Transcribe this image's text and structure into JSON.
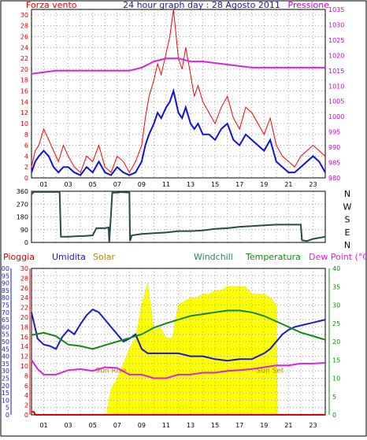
{
  "header": {
    "left": "Forza vento",
    "center": "24 hour graph day : 28 Agosto 2011",
    "right": "Pressione"
  },
  "colors": {
    "wind_axis": "#e00000",
    "pressure_axis": "#cc00cc",
    "title_blue": "#1a1aa0",
    "wind_avg": "#1010e0",
    "wind_gust": "#ff0000",
    "pressure": "#dd22dd",
    "direction": "#2a4a4a",
    "rain": "#e00000",
    "humidity": "#1a1ad0",
    "solar": "#ffff00",
    "solar_label": "#b08a00",
    "windchill": "#2e7d6e",
    "temperature": "#138a13",
    "dewpoint": "#dd22dd",
    "grid": "#a0a0a0"
  },
  "hour_labels": [
    "01",
    "03",
    "05",
    "07",
    "09",
    "11",
    "13",
    "15",
    "17",
    "19",
    "21",
    "23"
  ],
  "compass": [
    "N",
    "W",
    "S",
    "E",
    "N"
  ],
  "chart_data": [
    {
      "type": "line",
      "title": "24 hour graph day : 28 Agosto 2011",
      "y_left_label": "Forza vento",
      "y_right_label": "Pressione",
      "xlim": [
        0,
        24
      ],
      "ylim_left": [
        0,
        31
      ],
      "ylim_right": [
        980,
        1035
      ],
      "y_left_ticks": [
        0,
        2,
        4,
        6,
        8,
        10,
        12,
        14,
        16,
        18,
        20,
        22,
        24,
        26,
        28,
        30
      ],
      "y_right_ticks": [
        980,
        985,
        990,
        995,
        1000,
        1005,
        1010,
        1015,
        1020,
        1025,
        1030,
        1035
      ],
      "grid": true,
      "series": [
        {
          "name": "wind_gust",
          "axis": "left",
          "x": [
            0,
            0.3,
            0.6,
            1,
            1.4,
            1.8,
            2.2,
            2.6,
            3,
            3.5,
            4,
            4.5,
            5,
            5.5,
            6,
            6.5,
            7,
            7.5,
            8,
            8.5,
            9,
            9.3,
            9.6,
            10,
            10.3,
            10.6,
            11,
            11.3,
            11.6,
            12,
            12.3,
            12.6,
            13,
            13.3,
            13.6,
            14,
            14.5,
            15,
            15.5,
            16,
            16.5,
            17,
            17.5,
            18,
            18.5,
            19,
            19.5,
            20,
            20.5,
            21,
            21.5,
            22,
            22.5,
            23,
            23.5,
            24
          ],
          "y": [
            2,
            5,
            6,
            9,
            7,
            5,
            3,
            6,
            4,
            2,
            1,
            4,
            3,
            6,
            2,
            1,
            4,
            3,
            1,
            3,
            6,
            11,
            15,
            18,
            21,
            19,
            23,
            26,
            31,
            22,
            20,
            24,
            19,
            15,
            17,
            14,
            12,
            10,
            13,
            15,
            11,
            9,
            13,
            12,
            10,
            8,
            11,
            6,
            4,
            3,
            2,
            4,
            5,
            6,
            5,
            4
          ]
        },
        {
          "name": "wind_avg",
          "axis": "left",
          "x": [
            0,
            0.3,
            0.6,
            1,
            1.4,
            1.8,
            2.2,
            2.6,
            3,
            3.5,
            4,
            4.5,
            5,
            5.5,
            6,
            6.5,
            7,
            7.5,
            8,
            8.5,
            9,
            9.3,
            9.6,
            10,
            10.3,
            10.6,
            11,
            11.3,
            11.6,
            12,
            12.3,
            12.6,
            13,
            13.3,
            13.6,
            14,
            14.5,
            15,
            15.5,
            16,
            16.5,
            17,
            17.5,
            18,
            18.5,
            19,
            19.5,
            20,
            20.5,
            21,
            21.5,
            22,
            22.5,
            23,
            23.5,
            24
          ],
          "y": [
            1,
            3,
            4,
            5,
            4,
            2,
            1,
            2,
            2,
            1,
            0.5,
            2,
            1,
            3,
            1,
            0.5,
            2,
            1,
            0.5,
            1,
            3,
            6,
            8,
            10,
            12,
            11,
            13,
            14,
            16,
            12,
            11,
            13,
            10,
            9,
            10,
            8,
            8,
            7,
            9,
            10,
            7,
            6,
            8,
            7,
            6,
            5,
            7,
            3,
            2,
            1,
            1,
            2,
            3,
            4,
            3,
            1
          ]
        },
        {
          "name": "pressure",
          "axis": "right",
          "x": [
            0,
            2,
            4,
            6,
            8,
            9,
            10,
            11,
            12,
            13,
            14,
            16,
            18,
            20,
            22,
            24
          ],
          "y": [
            1014,
            1015,
            1015,
            1015,
            1015,
            1016,
            1018,
            1019,
            1019,
            1018,
            1018,
            1017,
            1016,
            1016,
            1016,
            1016
          ]
        }
      ]
    },
    {
      "type": "line",
      "xlim": [
        0,
        24
      ],
      "ylim": [
        0,
        360
      ],
      "y_ticks": [
        0,
        90,
        180,
        270,
        360
      ],
      "grid": true,
      "series": [
        {
          "name": "wind_direction",
          "x": [
            0,
            0.2,
            1,
            2,
            2.3,
            2.4,
            3,
            4,
            4.3,
            5,
            5.3,
            6,
            6.3,
            6.35,
            6.6,
            7,
            7.3,
            8,
            8.05,
            8.2,
            9,
            10,
            11,
            12,
            13,
            14,
            15,
            16,
            17,
            18,
            19,
            20,
            21,
            22,
            22.1,
            22.5,
            23,
            24
          ],
          "y": [
            340,
            355,
            355,
            355,
            355,
            40,
            40,
            45,
            45,
            50,
            100,
            100,
            105,
            0,
            350,
            350,
            355,
            350,
            10,
            50,
            60,
            65,
            70,
            80,
            80,
            85,
            95,
            100,
            110,
            115,
            120,
            125,
            125,
            125,
            15,
            10,
            25,
            40
          ]
        }
      ]
    },
    {
      "type": "line",
      "xlim": [
        0,
        24
      ],
      "ylim_left": [
        0,
        100
      ],
      "ylim_right": [
        0,
        40
      ],
      "y_left_ticks": [
        0,
        5,
        10,
        15,
        20,
        25,
        30,
        35,
        40,
        45,
        50,
        55,
        60,
        65,
        70,
        75,
        80,
        85,
        90,
        95,
        100
      ],
      "y_right_ticks": [
        0,
        5,
        10,
        15,
        20,
        25,
        30,
        35,
        40
      ],
      "grid": true,
      "annotations": [
        "Sun Rise",
        "Sun Set"
      ],
      "legend": [
        "Pioggia",
        "Umidita",
        "Solar",
        "Windchill",
        "Temperatura",
        "Dew Point (°C)"
      ],
      "series": [
        {
          "name": "Pioggia",
          "axis": "right",
          "x": [
            0,
            0.2,
            0.3,
            24
          ],
          "y": [
            0.8,
            0.8,
            0,
            0
          ]
        },
        {
          "name": "Umidita",
          "axis": "left",
          "x": [
            0,
            0.5,
            1,
            1.5,
            2,
            2.5,
            3,
            3.5,
            4,
            4.5,
            5,
            5.5,
            6,
            6.5,
            7,
            7.5,
            8,
            8.5,
            9,
            9.5,
            10,
            11,
            12,
            13,
            14,
            15,
            16,
            17,
            18,
            18.5,
            19,
            19.5,
            20,
            20.5,
            21,
            21.5,
            22,
            22.5,
            23,
            23.5,
            24
          ],
          "y": [
            70,
            52,
            48,
            47,
            45,
            53,
            58,
            55,
            62,
            68,
            72,
            70,
            65,
            60,
            55,
            50,
            52,
            55,
            45,
            42,
            42,
            42,
            42,
            40,
            40,
            38,
            37,
            38,
            38,
            40,
            42,
            45,
            50,
            55,
            58,
            60,
            61,
            62,
            63,
            64,
            65
          ]
        },
        {
          "name": "Solar",
          "axis": "right",
          "x": [
            6.2,
            6.5,
            7,
            7.5,
            8,
            8.5,
            9,
            9.5,
            10,
            10.5,
            11,
            11.5,
            12,
            12.5,
            13,
            13.5,
            14,
            14.5,
            15,
            15.5,
            16,
            16.5,
            17,
            17.5,
            18,
            18.5,
            19,
            19.5,
            20,
            20.1
          ],
          "y": [
            2,
            7,
            10,
            14,
            18,
            21,
            30,
            36,
            23,
            24,
            21,
            21,
            30,
            31,
            32,
            32,
            33,
            33,
            34,
            34,
            35,
            35,
            35,
            35,
            33,
            33,
            33,
            32,
            30,
            0
          ]
        },
        {
          "name": "Temperatura",
          "axis": "right",
          "x": [
            0,
            1,
            2,
            3,
            4,
            5,
            6,
            7,
            8,
            9,
            10,
            11,
            12,
            13,
            14,
            15,
            16,
            17,
            18,
            19,
            20,
            21,
            22,
            23,
            24
          ],
          "y": [
            21.8,
            22.4,
            21.5,
            19.2,
            18.8,
            18,
            19,
            20,
            21,
            22,
            23.8,
            25,
            26,
            27,
            27.5,
            28,
            28.5,
            28.5,
            28,
            27,
            25.5,
            24,
            22.5,
            21.5,
            20.5
          ]
        },
        {
          "name": "Dew Point (°C)",
          "axis": "right",
          "x": [
            0,
            0.5,
            1,
            2,
            3,
            4,
            5,
            6,
            7,
            8,
            9,
            10,
            11,
            12,
            13,
            14,
            15,
            16,
            17,
            18,
            19,
            20,
            21,
            22,
            23,
            24
          ],
          "y": [
            15,
            12.5,
            11,
            11,
            12.2,
            12.5,
            12,
            13,
            12.8,
            11,
            11,
            10,
            10,
            11,
            11,
            11.5,
            11.5,
            12,
            12.2,
            12.5,
            13,
            13.5,
            13.5,
            14,
            14,
            14.2
          ]
        }
      ]
    }
  ]
}
